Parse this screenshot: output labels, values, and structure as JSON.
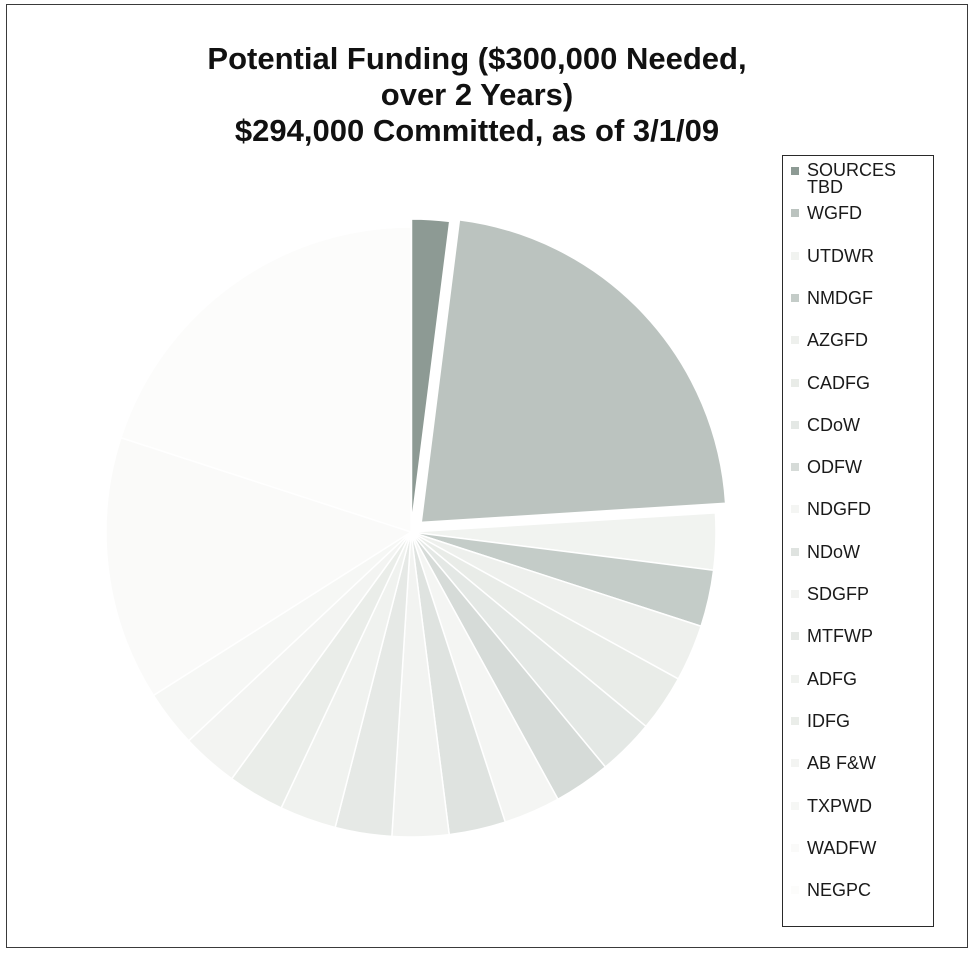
{
  "chart_data": {
    "type": "pie",
    "title": "Potential Funding ($300,000 Needed,",
    "subtitle_lines": [
      "over 2 Years)",
      "$294,000 Committed, as of 3/1/09"
    ],
    "legend_position": "right",
    "slices": [
      {
        "label": "SOURCES TBD",
        "value": 2,
        "color": "#8d9a94"
      },
      {
        "label": "WGFD",
        "value": 22,
        "color": "#bbc3bf"
      },
      {
        "label": "UTDWR",
        "value": 3,
        "color": "#f1f3f0"
      },
      {
        "label": "NMDGF",
        "value": 3,
        "color": "#c4ccc8"
      },
      {
        "label": "AZGFD",
        "value": 3,
        "color": "#eef0ed"
      },
      {
        "label": "CADFG",
        "value": 3,
        "color": "#e9ece8"
      },
      {
        "label": "CDoW",
        "value": 3,
        "color": "#e4e8e5"
      },
      {
        "label": "ODFW",
        "value": 3,
        "color": "#d6dbd8"
      },
      {
        "label": "NDGFD",
        "value": 3,
        "color": "#f4f5f3"
      },
      {
        "label": "NDoW",
        "value": 3,
        "color": "#dfe3e0"
      },
      {
        "label": "SDGFP",
        "value": 3,
        "color": "#f2f3f1"
      },
      {
        "label": "MTFWP",
        "value": 3,
        "color": "#e6e9e6"
      },
      {
        "label": "ADFG",
        "value": 3,
        "color": "#f0f2ef"
      },
      {
        "label": "IDFG",
        "value": 3,
        "color": "#eaede9"
      },
      {
        "label": "AB F&W",
        "value": 3,
        "color": "#f3f4f2"
      },
      {
        "label": "TXPWD",
        "value": 3,
        "color": "#f6f7f5"
      },
      {
        "label": "WADFW",
        "value": 14,
        "color": "#fafaf9"
      },
      {
        "label": "NEGPC",
        "value": 20,
        "color": "#fcfcfb"
      }
    ]
  }
}
